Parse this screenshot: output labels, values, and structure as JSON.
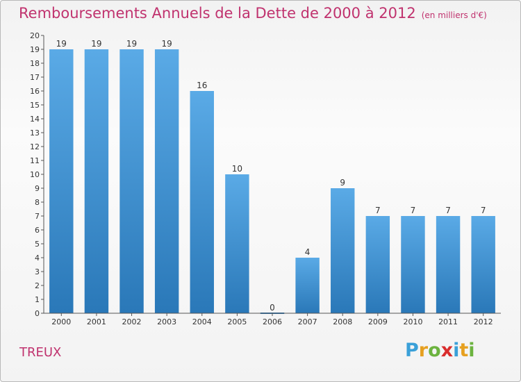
{
  "title": "Remboursements Annuels de la Dette de 2000 à 2012",
  "title_unit": "(en milliers d'€)",
  "commune": "TREUX",
  "logo": {
    "text": "Proxiti",
    "letters": [
      {
        "ch": "P",
        "color": "#3aa0d8"
      },
      {
        "ch": "r",
        "color": "#e6a020"
      },
      {
        "ch": "o",
        "color": "#6cb33f"
      },
      {
        "ch": "x",
        "color": "#d92d2d"
      },
      {
        "ch": "i",
        "color": "#3aa0d8"
      },
      {
        "ch": "t",
        "color": "#e6a020"
      },
      {
        "ch": "i",
        "color": "#6cb33f"
      }
    ]
  },
  "colors": {
    "bar_top": "#5aaae6",
    "bar_bottom": "#2a78b8",
    "title": "#c0326e",
    "axis": "#555555"
  },
  "chart_data": {
    "type": "bar",
    "categories": [
      "2000",
      "2001",
      "2002",
      "2003",
      "2004",
      "2005",
      "2006",
      "2007",
      "2008",
      "2009",
      "2010",
      "2011",
      "2012"
    ],
    "values": [
      19,
      19,
      19,
      19,
      16,
      10,
      0,
      4,
      9,
      7,
      7,
      7,
      7
    ],
    "ylim": [
      0,
      20
    ],
    "yticks": [
      0,
      1,
      2,
      3,
      4,
      5,
      6,
      7,
      8,
      9,
      10,
      11,
      12,
      13,
      14,
      15,
      16,
      17,
      18,
      19,
      20
    ],
    "grid": false,
    "legend": "none"
  }
}
